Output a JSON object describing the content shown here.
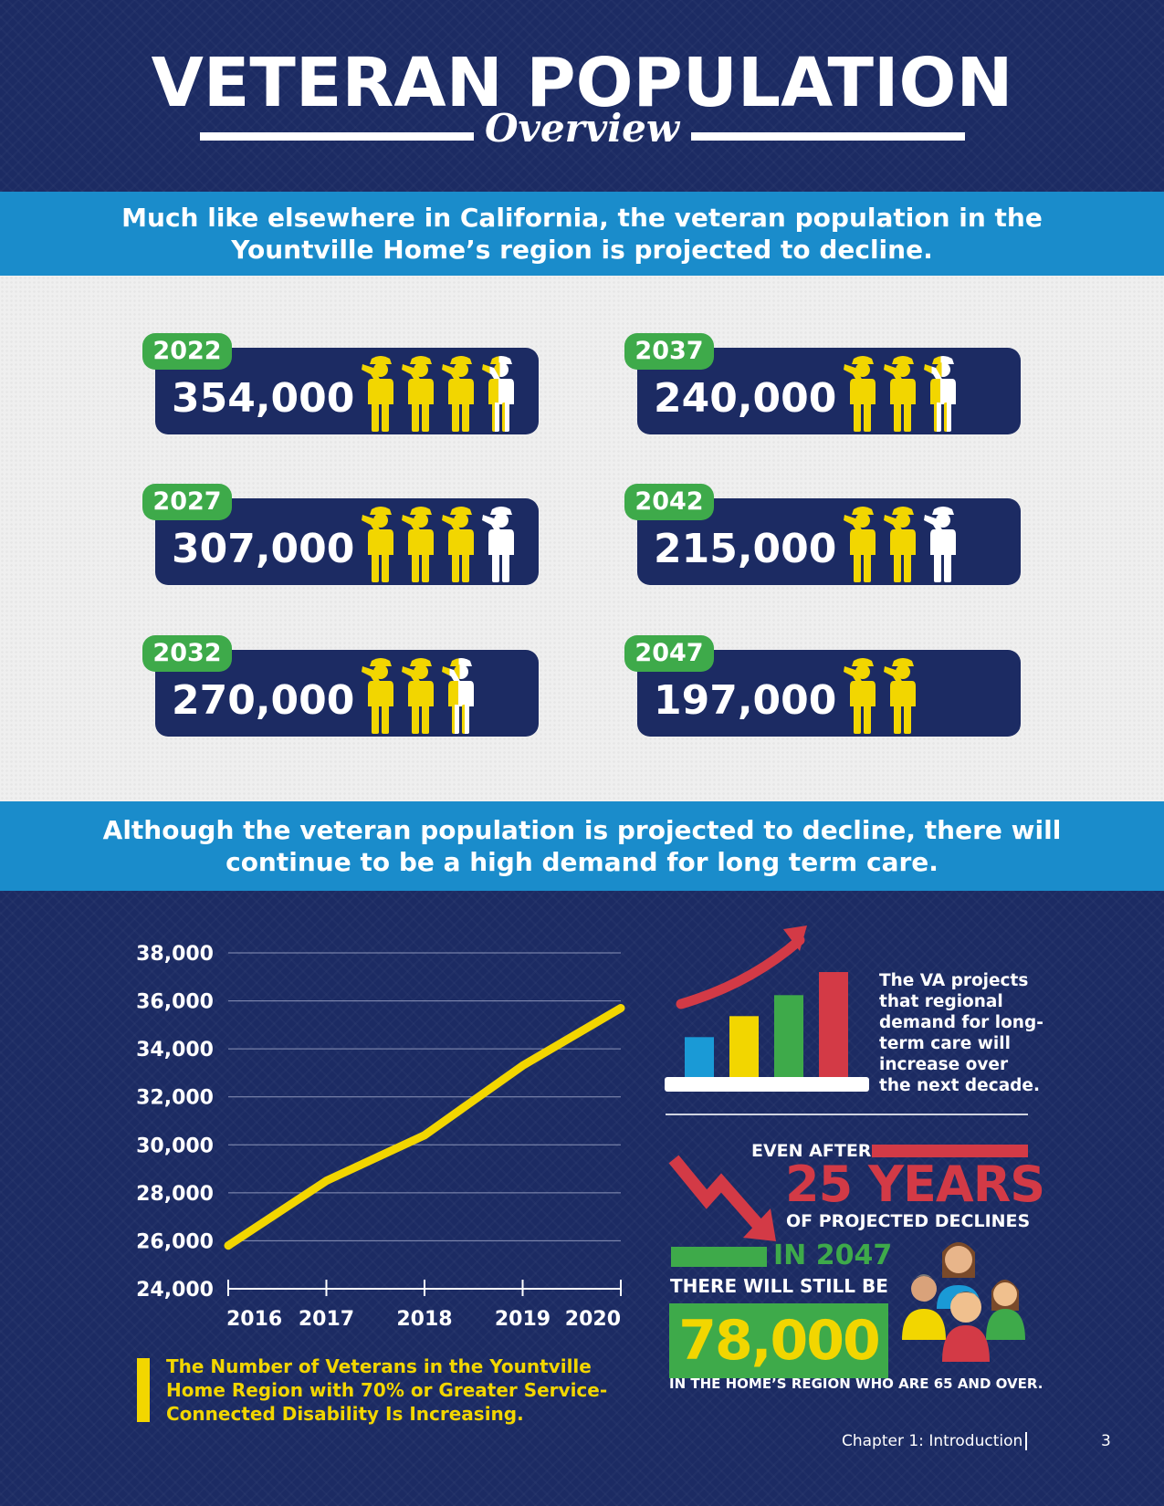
{
  "header": {
    "title": "VETERAN POPULATION",
    "subtitle": "Overview"
  },
  "banner1": {
    "text": "Much like elsewhere in California, the veteran population in the Yountville Home’s region is projected to decline."
  },
  "projections": [
    {
      "year": "2022",
      "value": "354,000",
      "figures": [
        1,
        1,
        1,
        0.4
      ]
    },
    {
      "year": "2037",
      "value": "240,000",
      "figures": [
        1,
        1,
        0.4
      ]
    },
    {
      "year": "2027",
      "value": "307,000",
      "figures": [
        1,
        1,
        1,
        0
      ]
    },
    {
      "year": "2042",
      "value": "215,000",
      "figures": [
        1,
        1,
        0
      ]
    },
    {
      "year": "2032",
      "value": "270,000",
      "figures": [
        1,
        1,
        0.4
      ]
    },
    {
      "year": "2047",
      "value": "197,000",
      "figures": [
        1,
        1
      ]
    }
  ],
  "banner2": {
    "text": "Although the veteran population is projected to decline, there will continue to be a high demand for long term care."
  },
  "chart_data": {
    "type": "line",
    "x": [
      "2016",
      "2017",
      "2018",
      "2019",
      "2020"
    ],
    "series": [
      {
        "values": [
          25800,
          28500,
          30400,
          33300,
          35700
        ],
        "color": "#f2d600"
      }
    ],
    "ylim": [
      24000,
      38000
    ],
    "yticks": [
      "24,000",
      "26,000",
      "28,000",
      "30,000",
      "32,000",
      "34,000",
      "36,000",
      "38,000"
    ],
    "ytick_values": [
      24000,
      26000,
      28000,
      30000,
      32000,
      34000,
      36000,
      38000
    ],
    "grid": true,
    "caption": "The Number of Veterans in the Yountville Home Region with 70% or Greater Service-Connected Disability Is Increasing."
  },
  "right_panel": {
    "va_text": "The VA projects that regional demand for long-term care will increase over the next decade.",
    "growth_bars": {
      "colors": [
        "#1a9ad6",
        "#f2d600",
        "#3eaa4a",
        "#d33a46"
      ],
      "levels": [
        0.38,
        0.58,
        0.78,
        1.0
      ]
    },
    "even_after": "EVEN AFTER",
    "years": "25 YEARS",
    "projected": "OF PROJECTED DECLINES",
    "in_2047": "IN 2047",
    "still_be": "THERE WILL STILL BE",
    "big_number": "78,000",
    "region_text": "IN THE HOME’S REGION WHO ARE 65 AND OVER."
  },
  "colors": {
    "navy": "#1c2b63",
    "banner_blue": "#1a8ccb",
    "yellow": "#f2d600",
    "green": "#3eaa4a",
    "red": "#d33a46",
    "light_bg": "#efefef"
  },
  "footer": {
    "chapter": "Chapter 1: Introduction",
    "page": "3"
  }
}
